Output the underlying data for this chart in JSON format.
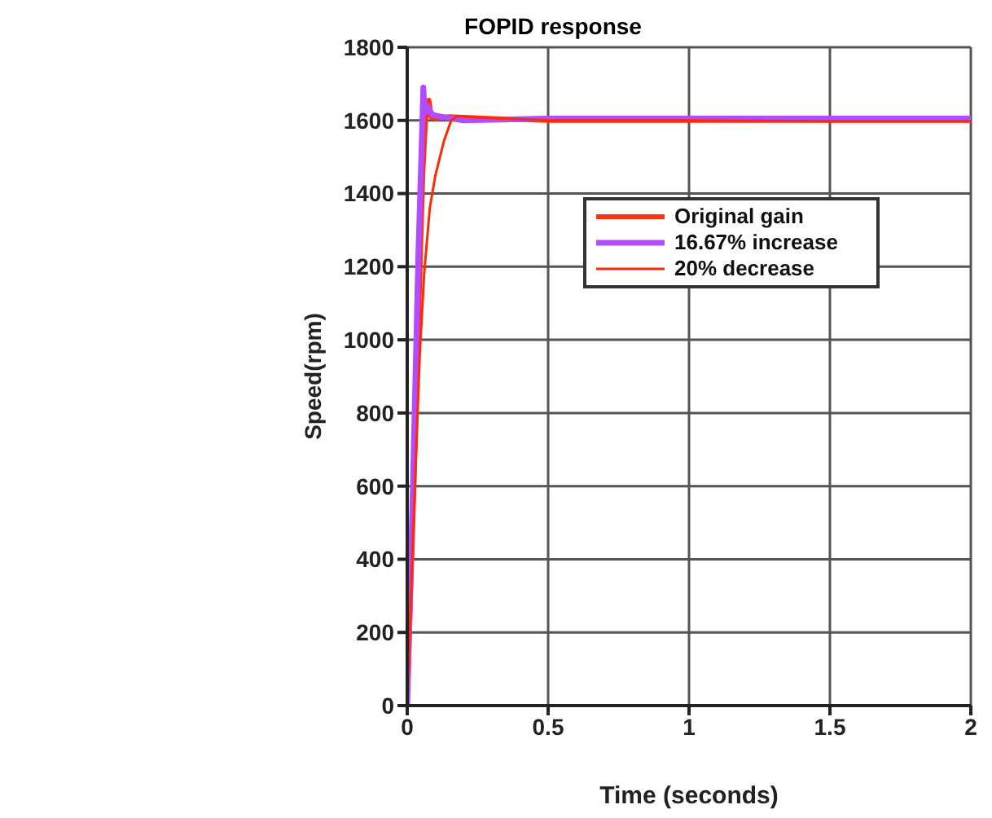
{
  "chart_data": {
    "type": "line",
    "title": "FOPID response",
    "xlabel": "Time (seconds)",
    "ylabel": "Speed(rpm)",
    "xlim": [
      0,
      2
    ],
    "xticks": [
      0,
      0.5,
      1,
      1.5,
      2
    ],
    "ylim": [
      0,
      1800
    ],
    "yticks": [
      0,
      200,
      400,
      600,
      800,
      1000,
      1200,
      1400,
      1600,
      1800
    ],
    "grid": true,
    "legend": "right",
    "line_style": "solid",
    "series": [
      {
        "name": "Original gain",
        "color": "#ff3014",
        "x": [
          0,
          0.02,
          0.04,
          0.055,
          0.065,
          0.07,
          0.077,
          0.085,
          0.1,
          0.15,
          0.3,
          0.5,
          1,
          1.5,
          2
        ],
        "values": [
          0,
          500,
          1050,
          1450,
          1600,
          1620,
          1655,
          1610,
          1605,
          1610,
          1605,
          1600,
          1600,
          1600,
          1600
        ]
      },
      {
        "name": "16.67% increase",
        "color": "#b24cff",
        "x": [
          0,
          0.02,
          0.04,
          0.05,
          0.057,
          0.062,
          0.07,
          0.09,
          0.12,
          0.2,
          0.5,
          1,
          1.5,
          2
        ],
        "values": [
          0,
          600,
          1250,
          1500,
          1690,
          1620,
          1640,
          1615,
          1610,
          1600,
          1605,
          1605,
          1605,
          1605
        ]
      },
      {
        "name": "20% decrease",
        "color": "#ff2a00",
        "x": [
          0,
          0.02,
          0.045,
          0.06,
          0.08,
          0.1,
          0.13,
          0.156,
          0.18,
          0.25,
          0.5,
          1,
          1.5,
          2
        ],
        "values": [
          0,
          450,
          970,
          1180,
          1360,
          1450,
          1543,
          1600,
          1612,
          1608,
          1600,
          1600,
          1598,
          1598
        ]
      }
    ]
  }
}
